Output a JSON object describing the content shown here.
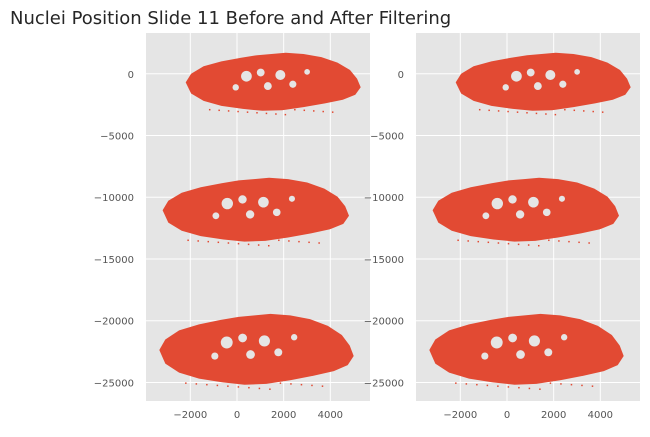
{
  "title": "Nuclei Position Slide 11 Before and After Filtering",
  "colors": {
    "points": "#e24a33",
    "axes_background": "#e5e5e5",
    "grid": "#ffffff",
    "tick_text": "#555555"
  },
  "chart_data": [
    {
      "type": "scatter",
      "subtitle": "",
      "xlabel": "",
      "ylabel": "",
      "xlim": [
        -3900,
        5700
      ],
      "ylim": [
        -26500,
        3300
      ],
      "xticks": [
        -2000,
        0,
        2000,
        4000
      ],
      "yticks": [
        0,
        -5000,
        -10000,
        -15000,
        -20000,
        -25000
      ],
      "xtick_labels": [
        "−2000",
        "0",
        "2000",
        "4000"
      ],
      "ytick_labels": [
        "0",
        "−5000",
        "−10000",
        "−15000",
        "−20000",
        "−25000"
      ],
      "grid": true,
      "series": [
        {
          "color": "#e24a33",
          "regions": [
            {
              "x_min": -2350,
              "x_max": 5300,
              "y_min": -3100,
              "y_max": 1900,
              "shape": "brain-section"
            },
            {
              "x_min": -3350,
              "x_max": 4800,
              "y_min": -13700,
              "y_max": -8200,
              "shape": "brain-section"
            },
            {
              "x_min": -3500,
              "x_max": 5000,
              "y_min": -25300,
              "y_max": -19200,
              "shape": "brain-section"
            }
          ]
        }
      ]
    },
    {
      "type": "scatter",
      "subtitle": "",
      "xlabel": "",
      "ylabel": "",
      "xlim": [
        -3900,
        5700
      ],
      "ylim": [
        -26500,
        3300
      ],
      "xticks": [
        -2000,
        0,
        2000,
        4000
      ],
      "yticks": [
        0,
        -5000,
        -10000,
        -15000,
        -20000,
        -25000
      ],
      "xtick_labels": [
        "−2000",
        "0",
        "2000",
        "4000"
      ],
      "ytick_labels": [
        "0",
        "−5000",
        "−10000",
        "−15000",
        "−20000",
        "−25000"
      ],
      "grid": true,
      "series": [
        {
          "color": "#e24a33",
          "regions": [
            {
              "x_min": -2350,
              "x_max": 5300,
              "y_min": -3100,
              "y_max": 1900,
              "shape": "brain-section"
            },
            {
              "x_min": -3350,
              "x_max": 4800,
              "y_min": -13700,
              "y_max": -8200,
              "shape": "brain-section"
            },
            {
              "x_min": -3500,
              "x_max": 5000,
              "y_min": -25300,
              "y_max": -19200,
              "shape": "brain-section"
            }
          ]
        }
      ]
    }
  ]
}
